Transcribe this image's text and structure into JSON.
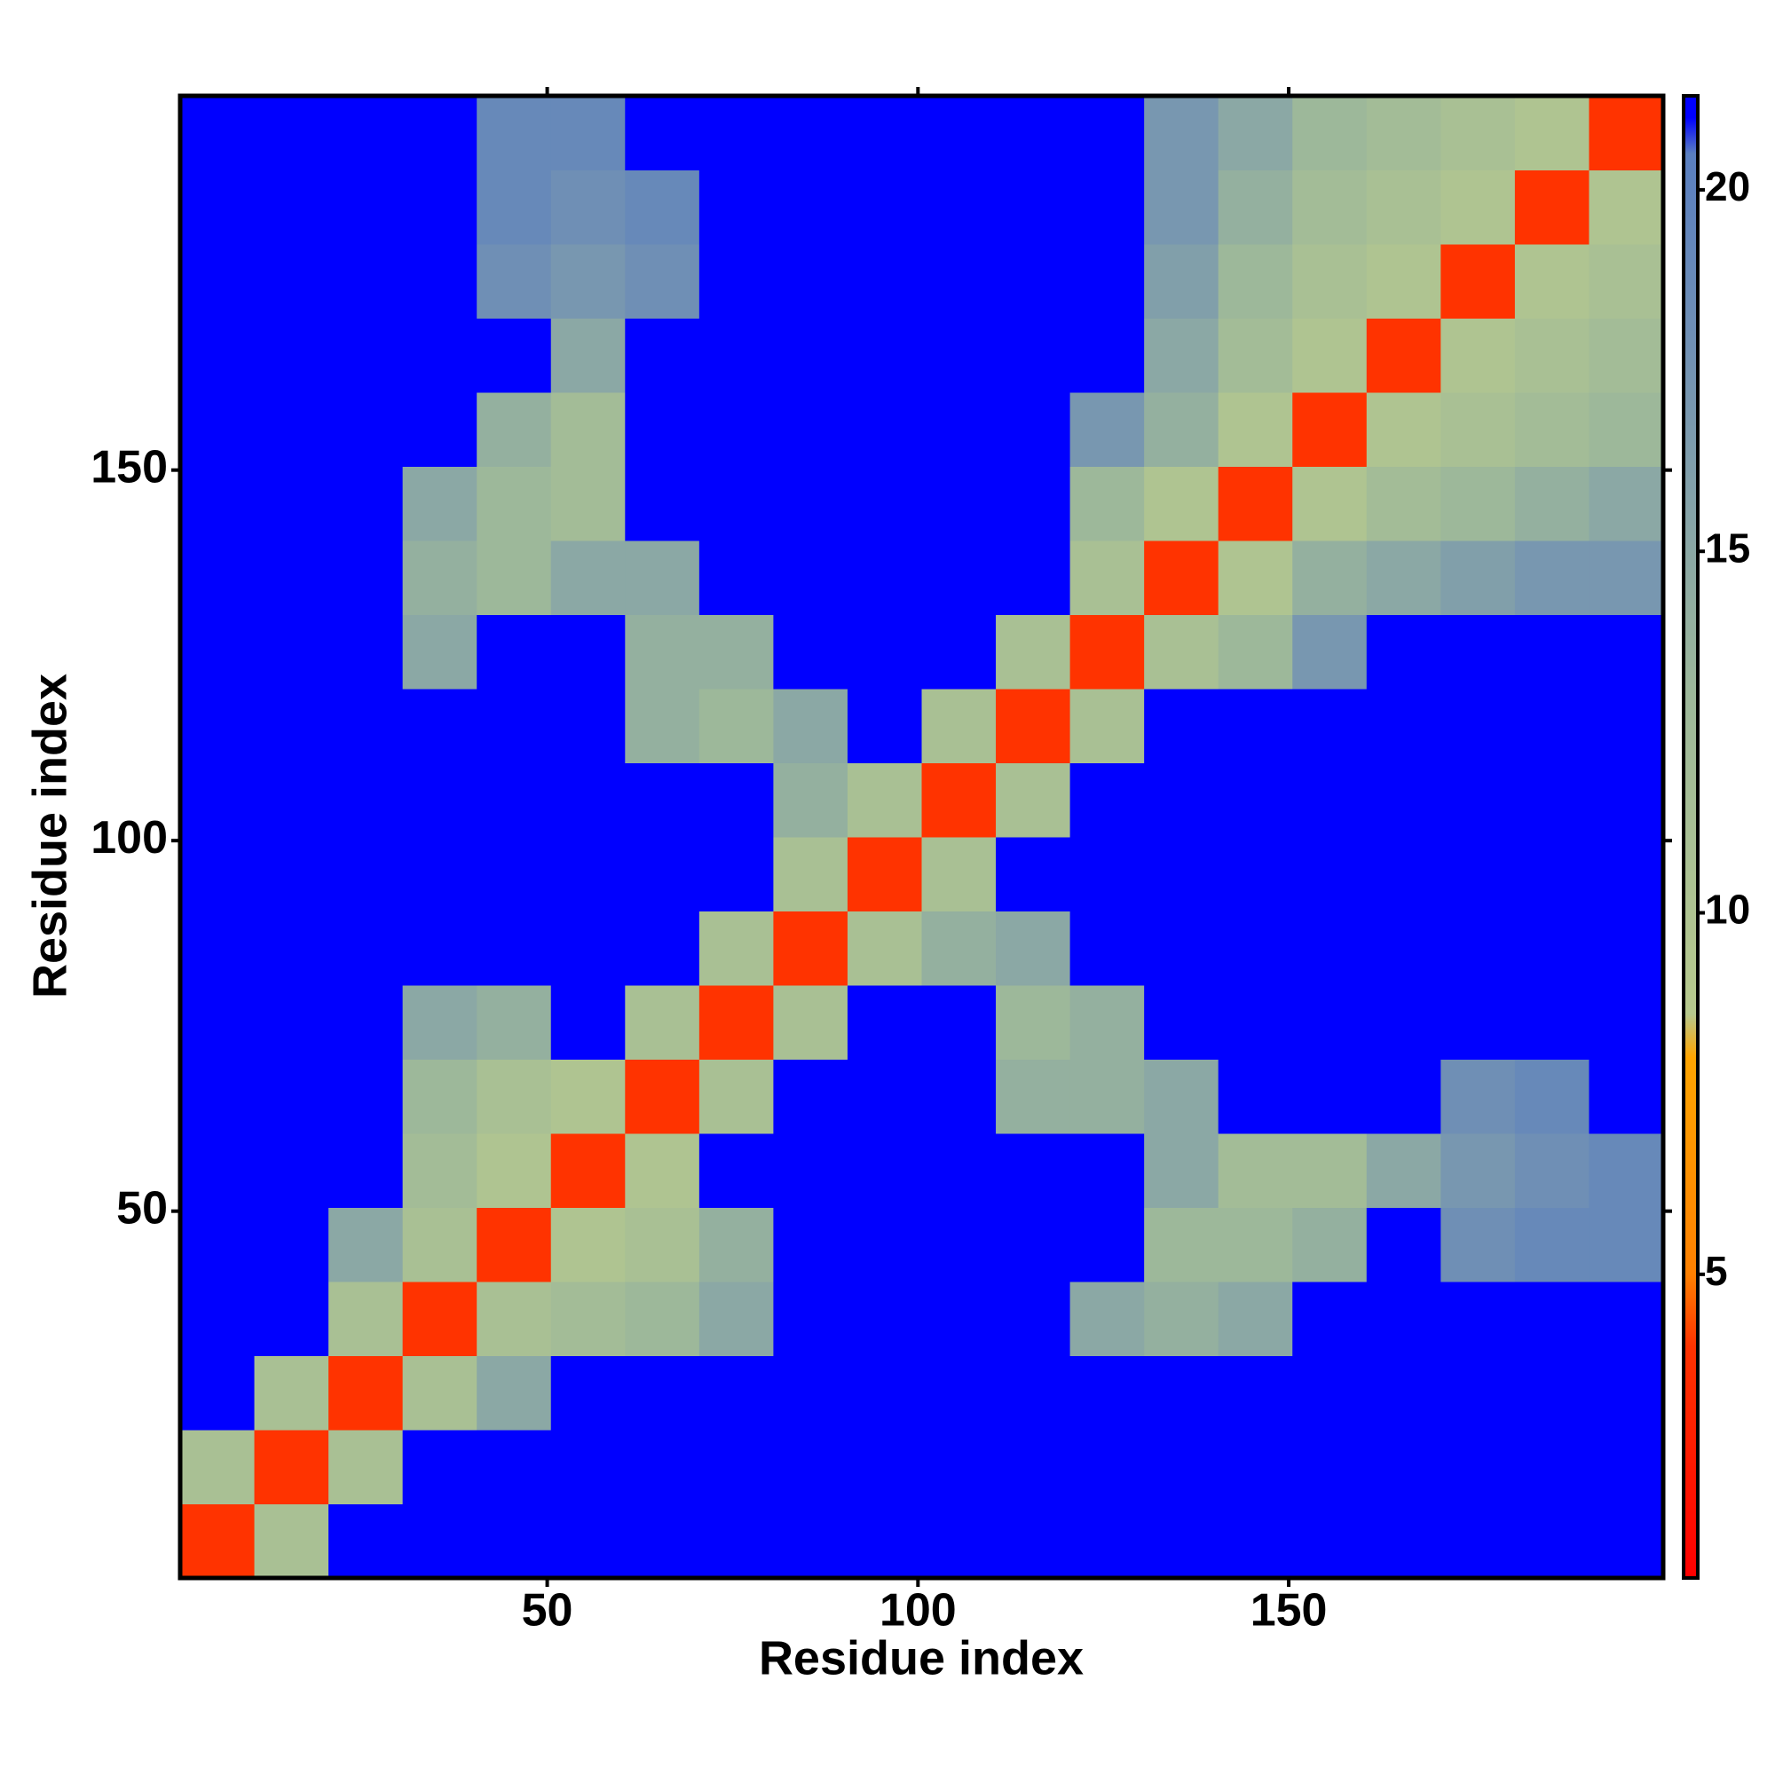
{
  "chart_data": {
    "type": "heatmap",
    "xlabel": "Residue index",
    "ylabel": "Residue index",
    "x": [
      5.5,
      15.5,
      25.5,
      35.5,
      45.5,
      55.5,
      65.5,
      75.5,
      85.5,
      95.5,
      105.5,
      115.5,
      125.5,
      135.5,
      145.5,
      155.5,
      165.5,
      175.5,
      185.5,
      195.5
    ],
    "y": [
      5.5,
      15.5,
      25.5,
      35.5,
      45.5,
      55.5,
      65.5,
      75.5,
      85.5,
      95.5,
      105.5,
      115.5,
      125.5,
      135.5,
      145.5,
      155.5,
      165.5,
      175.5,
      185.5,
      195.5
    ],
    "values": [
      [
        4,
        11,
        21,
        21,
        21,
        21,
        21,
        21,
        21,
        21,
        21,
        21,
        21,
        21,
        21,
        21,
        21,
        21,
        21,
        21
      ],
      [
        11,
        4,
        11,
        21,
        21,
        21,
        21,
        21,
        21,
        21,
        21,
        21,
        21,
        21,
        21,
        21,
        21,
        21,
        21,
        21
      ],
      [
        21,
        11,
        4,
        11,
        15,
        21,
        21,
        21,
        21,
        21,
        21,
        21,
        21,
        21,
        21,
        21,
        21,
        21,
        21,
        21
      ],
      [
        21,
        21,
        11,
        4,
        11,
        12,
        13,
        15,
        21,
        21,
        21,
        21,
        15,
        14,
        15,
        21,
        21,
        21,
        21,
        21
      ],
      [
        21,
        21,
        15,
        11,
        4,
        10,
        11,
        14,
        21,
        21,
        21,
        21,
        21,
        13,
        13,
        14,
        21,
        18,
        19,
        19
      ],
      [
        21,
        21,
        21,
        12,
        10,
        4,
        10,
        21,
        21,
        21,
        21,
        21,
        21,
        15,
        12,
        12,
        15,
        17,
        18,
        19
      ],
      [
        21,
        21,
        21,
        13,
        11,
        10,
        4,
        11,
        21,
        21,
        21,
        14,
        14,
        15,
        21,
        21,
        21,
        18,
        19,
        21
      ],
      [
        21,
        21,
        21,
        15,
        14,
        21,
        11,
        4,
        11,
        21,
        21,
        13,
        14,
        21,
        21,
        21,
        21,
        21,
        21,
        21
      ],
      [
        21,
        21,
        21,
        21,
        21,
        21,
        21,
        11,
        4,
        11,
        14,
        15,
        21,
        21,
        21,
        21,
        21,
        21,
        21,
        21
      ],
      [
        21,
        21,
        21,
        21,
        21,
        21,
        21,
        21,
        11,
        4,
        11,
        21,
        21,
        21,
        21,
        21,
        21,
        21,
        21,
        21
      ],
      [
        21,
        21,
        21,
        21,
        21,
        21,
        21,
        21,
        14,
        11,
        4,
        11,
        21,
        21,
        21,
        21,
        21,
        21,
        21,
        21
      ],
      [
        21,
        21,
        21,
        21,
        21,
        21,
        14,
        13,
        15,
        21,
        11,
        4,
        11,
        21,
        21,
        21,
        21,
        21,
        21,
        21
      ],
      [
        21,
        21,
        21,
        15,
        21,
        21,
        14,
        14,
        21,
        21,
        21,
        11,
        4,
        11,
        13,
        17,
        21,
        21,
        21,
        21
      ],
      [
        21,
        21,
        21,
        14,
        13,
        15,
        15,
        21,
        21,
        21,
        21,
        21,
        11,
        4,
        10,
        14,
        15,
        16,
        17,
        17
      ],
      [
        21,
        21,
        21,
        15,
        13,
        12,
        21,
        21,
        21,
        21,
        21,
        21,
        13,
        10,
        4,
        10,
        12,
        13,
        14,
        15
      ],
      [
        21,
        21,
        21,
        21,
        14,
        12,
        21,
        21,
        21,
        21,
        21,
        21,
        17,
        14,
        10,
        4,
        10,
        11,
        12,
        13
      ],
      [
        21,
        21,
        21,
        21,
        21,
        15,
        21,
        21,
        21,
        21,
        21,
        21,
        21,
        15,
        12,
        10,
        4,
        10,
        11,
        12
      ],
      [
        21,
        21,
        21,
        21,
        18,
        17,
        18,
        21,
        21,
        21,
        21,
        21,
        21,
        16,
        13,
        11,
        10,
        4,
        10,
        11
      ],
      [
        21,
        21,
        21,
        21,
        19,
        18,
        19,
        21,
        21,
        21,
        21,
        21,
        21,
        17,
        14,
        12,
        11,
        10,
        4,
        10
      ],
      [
        21,
        21,
        21,
        21,
        19,
        19,
        21,
        21,
        21,
        21,
        21,
        21,
        21,
        17,
        15,
        13,
        12,
        11,
        10,
        4
      ]
    ],
    "xlim": [
      0.5,
      200.5
    ],
    "ylim": [
      0.5,
      200.5
    ],
    "xticks": [
      50,
      100,
      150
    ],
    "yticks": [
      50,
      100,
      150
    ],
    "colorbar": {
      "lim": [
        0.8,
        21.3
      ],
      "ticks": [
        5,
        10,
        15,
        20
      ]
    },
    "colorscale": [
      [
        0.8,
        "#ff0000"
      ],
      [
        4,
        "#ff3300"
      ],
      [
        5,
        "#ff8000"
      ],
      [
        8,
        "#ffa500"
      ],
      [
        8.6,
        "#b7c98d"
      ],
      [
        13,
        "#9db89a"
      ],
      [
        18,
        "#6f8fb5"
      ],
      [
        20.5,
        "#5a7fc0"
      ],
      [
        21,
        "#0000ff"
      ]
    ]
  }
}
